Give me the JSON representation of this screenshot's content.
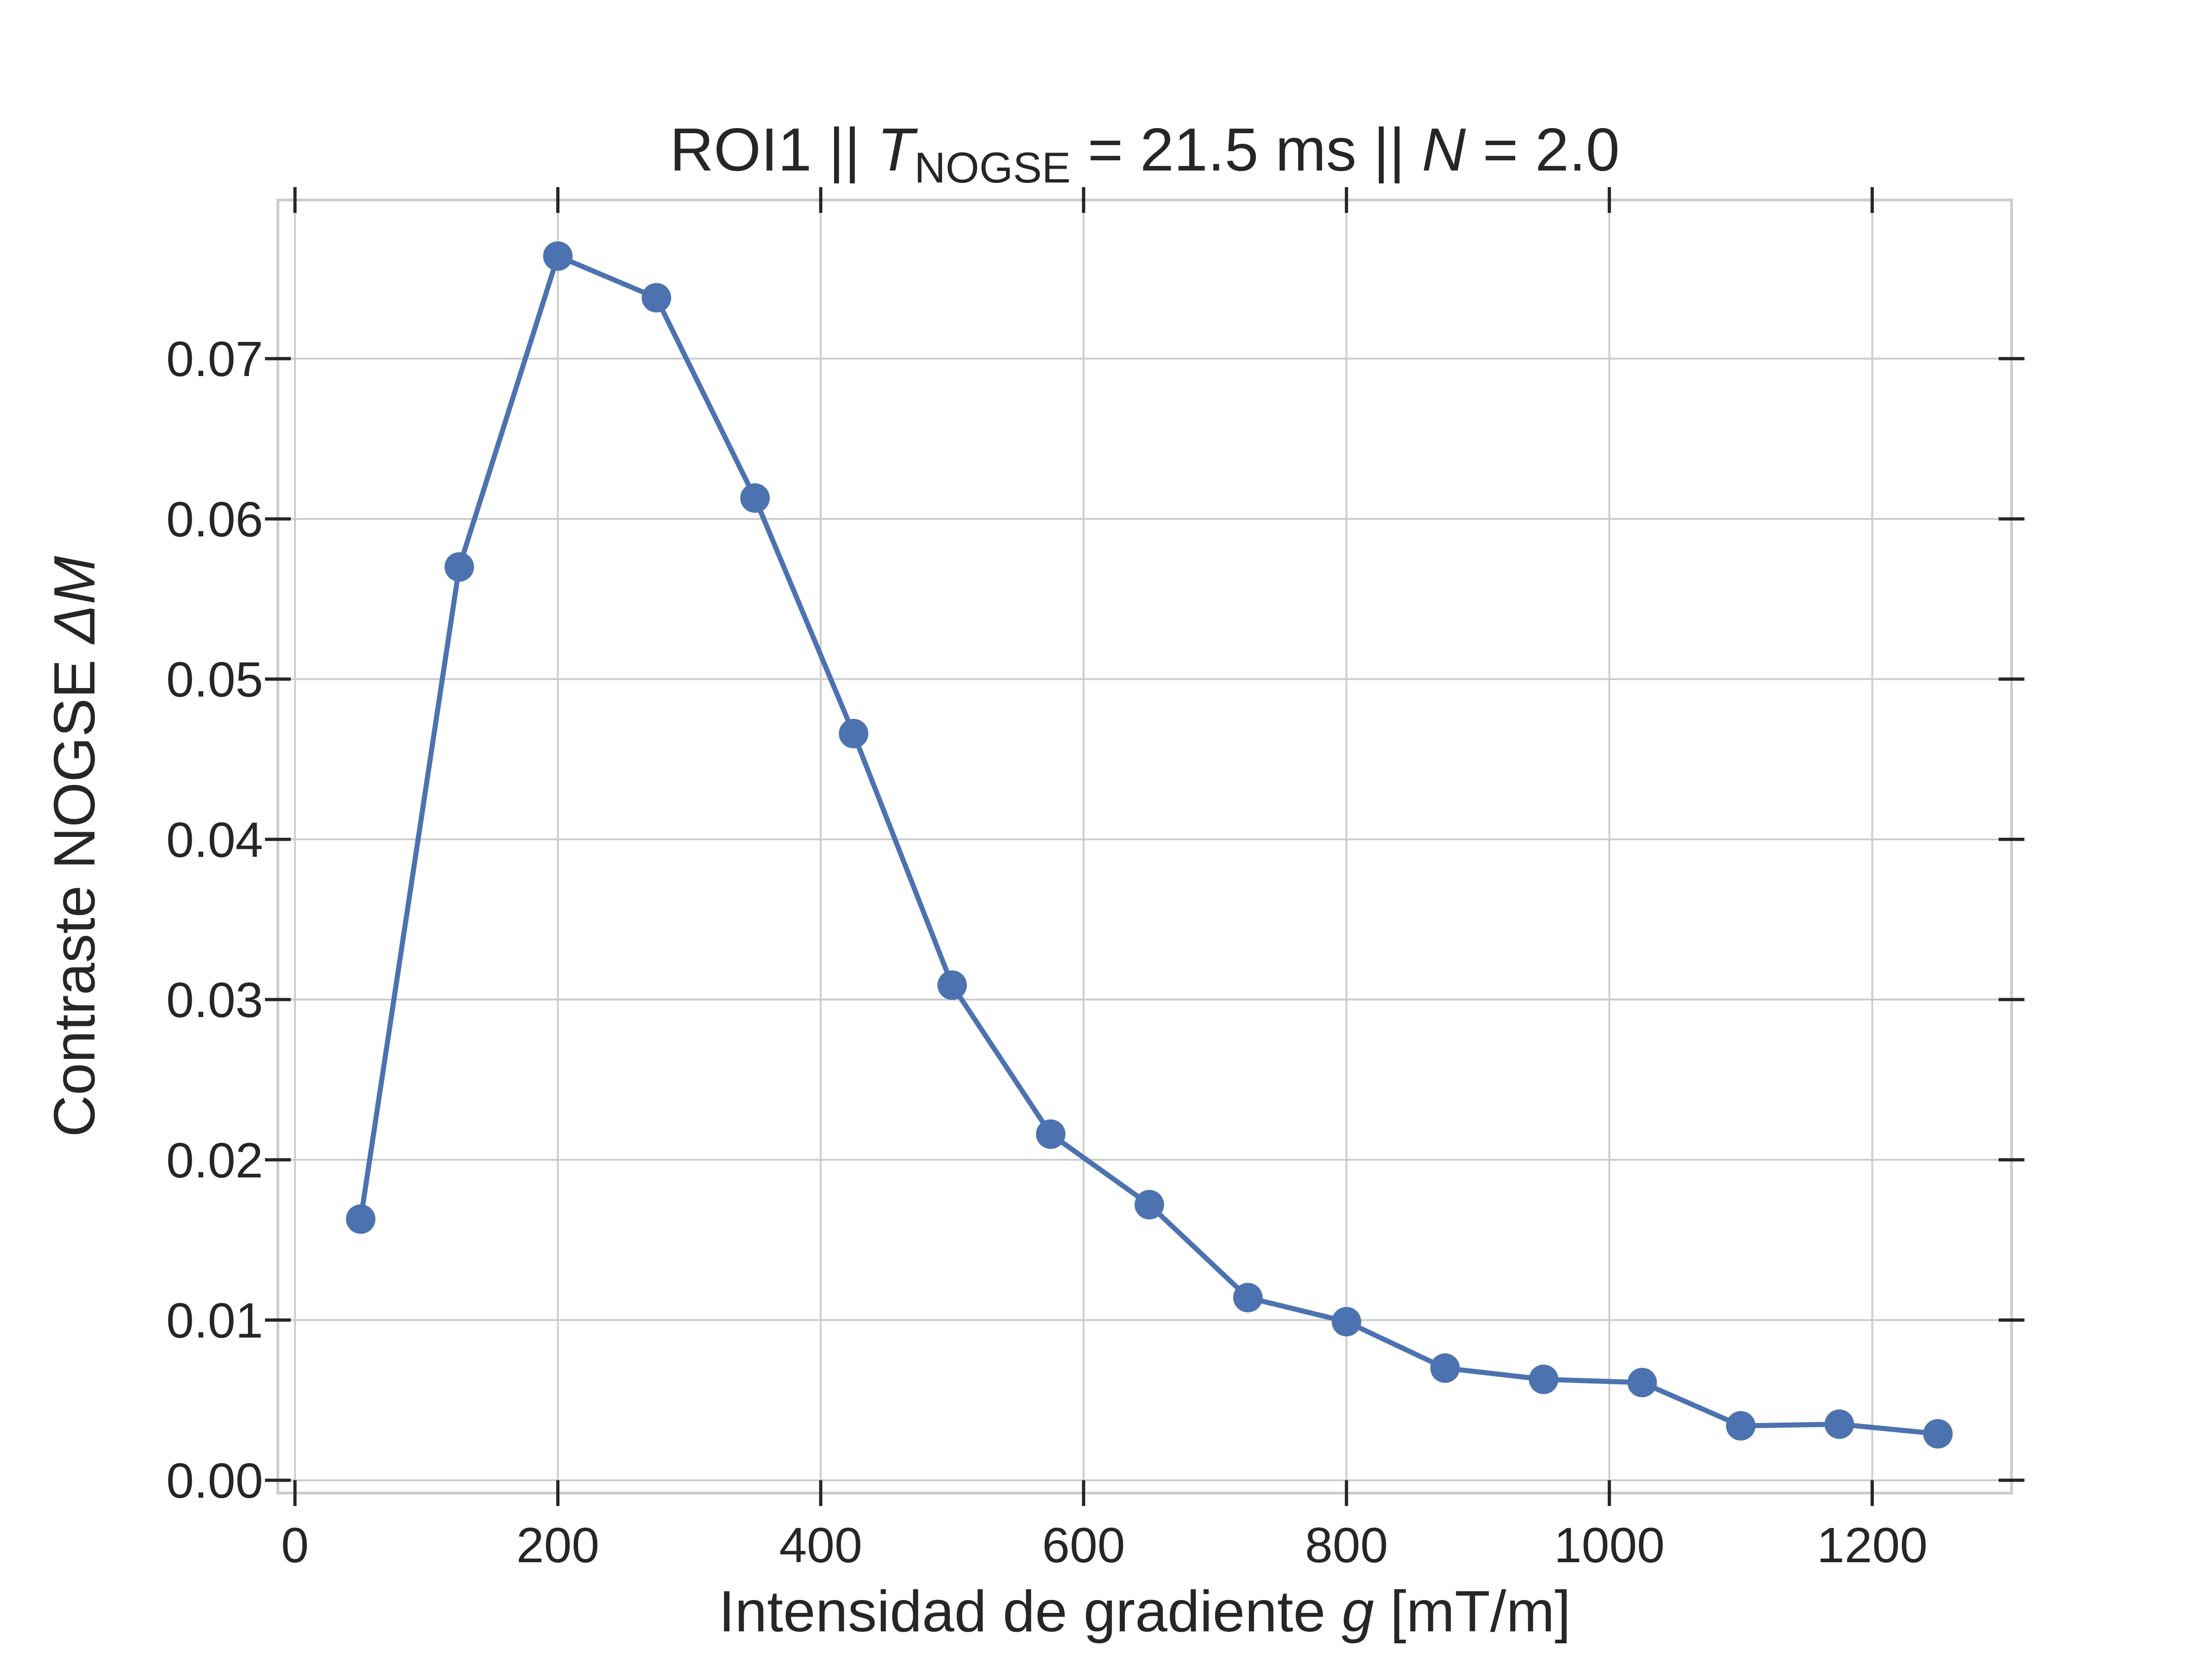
{
  "chart_data": {
    "type": "line",
    "title": {
      "prefix": "ROI1 || ",
      "t_symbol": "T",
      "t_subscript": "NOGSE",
      "t_value": " = 21.5 ms  ||  ",
      "n_symbol": "N",
      "n_value": " = 2.0"
    },
    "xlabel": {
      "prefix": "Intensidad de gradiente ",
      "symbol": "g",
      "suffix": " [mT/m]"
    },
    "ylabel": {
      "prefix": "Contraste NOGSE ",
      "symbol": "ΔM"
    },
    "xlim": [
      -13,
      1306
    ],
    "ylim": [
      -0.0008,
      0.0799
    ],
    "xticks": [
      0,
      200,
      400,
      600,
      800,
      1000,
      1200
    ],
    "xtick_labels": [
      "0",
      "200",
      "400",
      "600",
      "800",
      "1000",
      "1200"
    ],
    "yticks": [
      0.0,
      0.01,
      0.02,
      0.03,
      0.04,
      0.05,
      0.06,
      0.07
    ],
    "ytick_labels": [
      "0.00",
      "0.01",
      "0.02",
      "0.03",
      "0.04",
      "0.05",
      "0.06",
      "0.07"
    ],
    "grid": true,
    "series": [
      {
        "color": "#4c72b0",
        "x": [
          50,
          125,
          200,
          275,
          350,
          425,
          500,
          575,
          650,
          725,
          800,
          875,
          950,
          1025,
          1100,
          1175,
          1250
        ],
        "y": [
          0.0163,
          0.057,
          0.0764,
          0.0738,
          0.0613,
          0.0466,
          0.0309,
          0.0216,
          0.0172,
          0.0114,
          0.0099,
          0.007,
          0.0063,
          0.0061,
          0.0034,
          0.0035,
          0.0029
        ]
      }
    ]
  }
}
